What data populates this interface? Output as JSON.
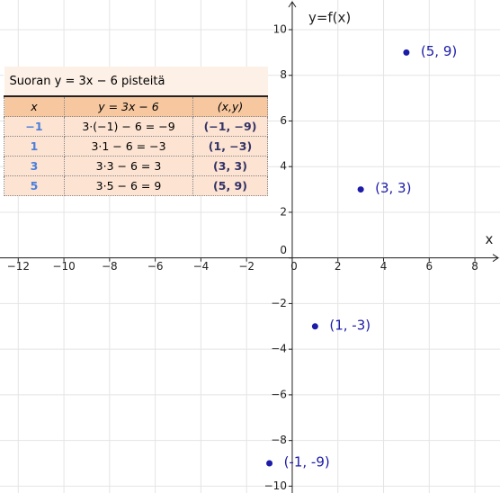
{
  "chart_data": {
    "type": "scatter",
    "xlabel": "x",
    "ylabel": "y=f(x)",
    "xlim": [
      -12.8,
      9.1
    ],
    "ylim": [
      -10.3,
      11.3
    ],
    "xticks": [
      {
        "value": -12,
        "label": "−12"
      },
      {
        "value": -10,
        "label": "−10"
      },
      {
        "value": -8,
        "label": "−8"
      },
      {
        "value": -6,
        "label": "−6"
      },
      {
        "value": -4,
        "label": "−4"
      },
      {
        "value": -2,
        "label": "−2"
      },
      0,
      2,
      4,
      6,
      8
    ],
    "yticks": [
      {
        "value": -10,
        "label": "−10"
      },
      {
        "value": -8,
        "label": "−8"
      },
      {
        "value": -6,
        "label": "−6"
      },
      {
        "value": -4,
        "label": "−4"
      },
      {
        "value": -2,
        "label": "−2"
      },
      0,
      2,
      4,
      6,
      8,
      10
    ],
    "grid": true,
    "series": [
      {
        "color": "#1c1ca8",
        "x": [
          -1,
          1,
          3,
          5
        ],
        "values": [
          -9,
          -3,
          3,
          9
        ],
        "value_labels": [
          "(-1, -9)",
          "(1, -3)",
          "(3, 3)",
          "(5, 9)"
        ]
      }
    ]
  },
  "table": {
    "title": "Suoran y = 3x − 6  pisteitä",
    "header": [
      "x",
      "y = 3x − 6",
      "(x,y)"
    ],
    "rows": [
      [
        "−1",
        "3·(−1) − 6 = −9",
        "(−1, −9)"
      ],
      [
        "1",
        "3·1 − 6 = −3",
        "(1, −3)"
      ],
      [
        "3",
        "3·3 − 6 = 3",
        "(3, 3)"
      ],
      [
        "5",
        "3·5 − 6 = 9",
        "(5, 9)"
      ]
    ]
  }
}
